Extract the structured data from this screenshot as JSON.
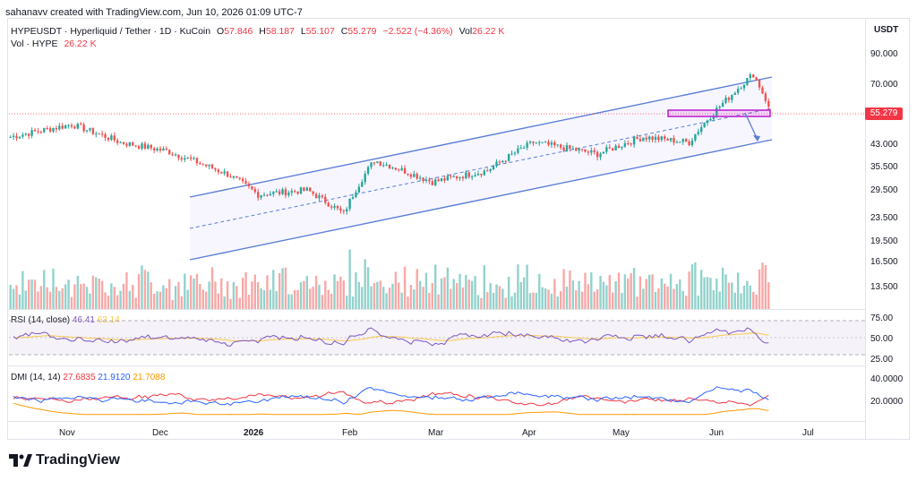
{
  "header": {
    "creator": "sahanavv created with TradingView.com, Jun 10, 2026 01:09 UTC-7"
  },
  "legend": {
    "symbol": "HYPEUSDT · Hyperliquid / Tether · 1D · KuCoin",
    "open_label": "O",
    "open": "57.846",
    "high_label": "H",
    "high": "58.187",
    "low_label": "L",
    "low": "55.107",
    "close_label": "C",
    "close": "55.279",
    "change": "−2.522 (−4.36%)",
    "vol_label": "Vol",
    "vol": "26.22 K",
    "vol_series_label": "Vol · HYPE",
    "vol_series_value": "26.22 K"
  },
  "price_axis": {
    "unit": "USDT",
    "ticks": [
      "90.000",
      "70.000",
      "43.000",
      "35.500",
      "29.500",
      "23.500",
      "19.500",
      "16.500",
      "13.500"
    ],
    "current_price": "55.279"
  },
  "rsi": {
    "label": "RSI (14, close)",
    "value1": "46.41",
    "value2": "63.14",
    "ticks": [
      "75.00",
      "50.00",
      "25.00"
    ]
  },
  "dmi": {
    "label": "DMI (14, 14)",
    "value1": "27.6835",
    "value2": "21.9120",
    "value3": "21.7088",
    "ticks": [
      "40.0000",
      "20.0000"
    ]
  },
  "time_axis": {
    "ticks": [
      "Nov",
      "Dec",
      "2026",
      "Feb",
      "Mar",
      "Apr",
      "May",
      "Jun",
      "Jul"
    ]
  },
  "footer": {
    "brand": "TradingView"
  },
  "colors": {
    "up": "#26a69a",
    "down": "#ef5350",
    "channel": "#5b7fd6",
    "rsi": "#7e57c2",
    "rsi_ma": "#f9c84b",
    "dmi_plus": "#2962ff",
    "dmi_minus": "#f23645",
    "adx": "#ff9800",
    "zone": "#c026d3"
  },
  "chart_data": {
    "type": "candlestick",
    "symbol": "HYPEUSDT",
    "interval": "1D",
    "x_range": [
      "Oct 2025",
      "Jul 2026"
    ],
    "y_range": [
      12,
      100
    ],
    "y_scale": "log",
    "annotations": [
      "ascending channel",
      "support zone near 55",
      "arrow pointing down to channel support"
    ],
    "last": {
      "open": 57.846,
      "high": 58.187,
      "low": 55.107,
      "close": 55.279
    },
    "approx_close_path": [
      {
        "date": "2025-10-05",
        "close": 42
      },
      {
        "date": "2025-10-25",
        "close": 47
      },
      {
        "date": "2025-11-10",
        "close": 40
      },
      {
        "date": "2025-11-25",
        "close": 37
      },
      {
        "date": "2025-12-15",
        "close": 30
      },
      {
        "date": "2025-12-25",
        "close": 25
      },
      {
        "date": "2026-01-10",
        "close": 26
      },
      {
        "date": "2026-01-22",
        "close": 21
      },
      {
        "date": "2026-02-01",
        "close": 34
      },
      {
        "date": "2026-02-20",
        "close": 28
      },
      {
        "date": "2026-03-10",
        "close": 31
      },
      {
        "date": "2026-03-25",
        "close": 40
      },
      {
        "date": "2026-04-15",
        "close": 36
      },
      {
        "date": "2026-04-30",
        "close": 42
      },
      {
        "date": "2026-05-15",
        "close": 40
      },
      {
        "date": "2026-05-28",
        "close": 60
      },
      {
        "date": "2026-06-05",
        "close": 74
      },
      {
        "date": "2026-06-10",
        "close": 55.279
      }
    ]
  }
}
